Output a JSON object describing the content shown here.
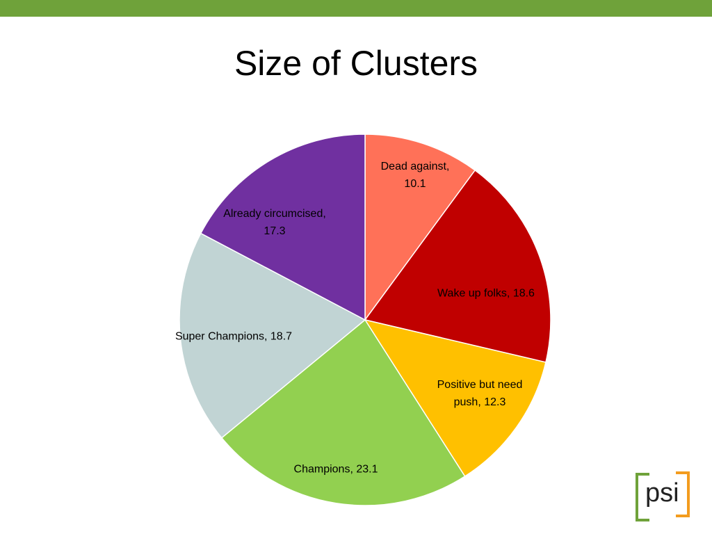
{
  "chart_data": {
    "type": "pie",
    "title": "Size of Clusters",
    "categories": [
      "Dead against",
      "Wake up folks",
      "Positive but need push",
      "Champions",
      "Super Champions",
      "Already circumcised"
    ],
    "values": [
      10.1,
      18.6,
      12.3,
      23.1,
      18.7,
      17.3
    ],
    "value_labels": [
      "Dead against, 10.1",
      "Wake up folks, 18.6",
      "Positive but need push, 12.3",
      "Champions, 23.1",
      "Super Champions, 18.7",
      "Already circumcised, 17.3"
    ],
    "colors": [
      "#ff7158",
      "#c00000",
      "#ffc000",
      "#92d050",
      "#c1d4d4",
      "#7030a0"
    ]
  },
  "logo": "psi"
}
